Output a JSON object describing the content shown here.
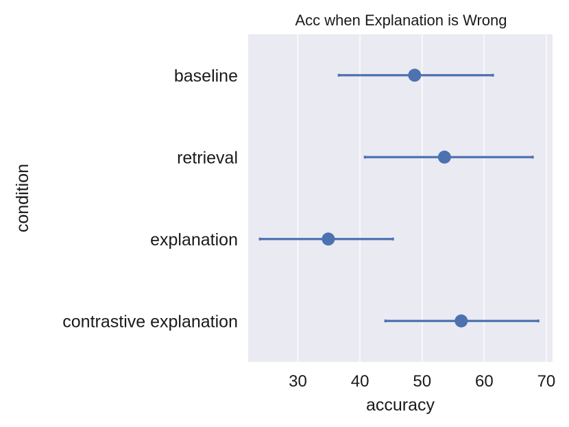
{
  "chart_data": {
    "type": "pointplot",
    "title": "Acc when Explanation is Wrong",
    "xlabel": "accuracy",
    "ylabel": "condition",
    "xlim": [
      22,
      71
    ],
    "xticks": [
      30,
      40,
      50,
      60,
      70
    ],
    "grid": true,
    "orientation": "horizontal",
    "categories": [
      "baseline",
      "retrieval",
      "explanation",
      "contrastive explanation"
    ],
    "values": [
      48.8,
      53.6,
      34.9,
      56.3
    ],
    "ci_low": [
      36.6,
      40.8,
      23.9,
      44.1
    ],
    "ci_high": [
      61.4,
      67.8,
      45.3,
      68.7
    ],
    "colors": {
      "point": "#4c72b0",
      "plot_background": "#eaeaf2",
      "grid": "#ffffff"
    }
  }
}
